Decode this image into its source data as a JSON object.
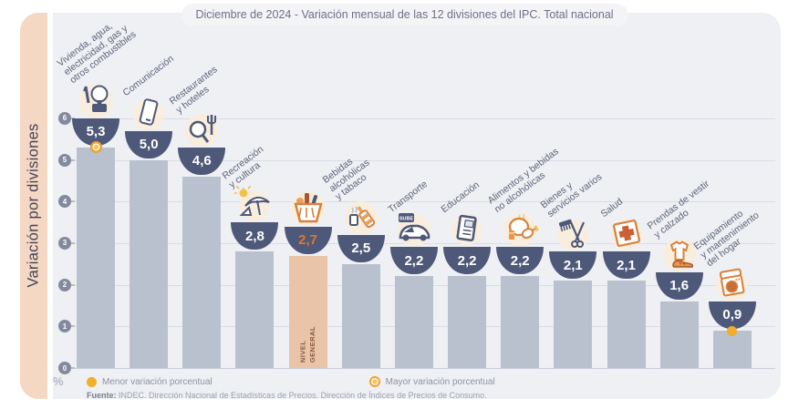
{
  "title": "Diciembre de 2024 - Variación mensual de las 12 divisiones del IPC. Total nacional",
  "sidebar": {
    "label": "Variación por divisiones"
  },
  "axis": {
    "unit_symbol": "%"
  },
  "source": {
    "prefix": "Fuente:",
    "text": " INDEC. Dirección Nacional de Estadísticas de Precios. Dirección de Índices de Precios de Consumo."
  },
  "chart_data": {
    "type": "bar",
    "title": "Diciembre de 2024 - Variación mensual de las 12 divisiones del IPC. Total nacional",
    "xlabel": "",
    "ylabel": "Variación por divisiones",
    "unit": "%",
    "ylim": [
      0,
      6
    ],
    "yticks": [
      0,
      1,
      2,
      3,
      4,
      5,
      6
    ],
    "grid": true,
    "legend_position": "bottom",
    "legend": [
      {
        "label": "Menor variación porcentual",
        "marker": "solid-yellow-dot"
      },
      {
        "label": "Mayor variación porcentual",
        "marker": "ringed-orange-dot"
      }
    ],
    "colors": {
      "bar": "#b8c1cd",
      "highlight_bar": "#eac4a9",
      "bowl": "#4e5878",
      "value_text": "#ffffff",
      "highlight_value_text": "#e0762f",
      "menor_dot": "#f0ae2a",
      "mayor_dot": "#ee9f35",
      "sidebar_bg": "#f5d8c3",
      "plot_bg": "#eef0f4"
    },
    "bars": [
      {
        "category": "Vivienda, agua, electricidad, gas y otros combustibles",
        "label_lines": [
          "Vivienda, agua,",
          "electricidad, gas y",
          "otros combustibles"
        ],
        "value": 5.3,
        "display": "5,3",
        "icon": "housing-utilities-icon",
        "marker": "mayor",
        "highlight": false
      },
      {
        "category": "Comunicación",
        "label_lines": [
          "Comunicación"
        ],
        "value": 5.0,
        "display": "5,0",
        "icon": "smartphone-icon",
        "marker": null,
        "highlight": false
      },
      {
        "category": "Restaurantes y hoteles",
        "label_lines": [
          "Restaurantes",
          "y hoteles"
        ],
        "value": 4.6,
        "display": "4,6",
        "icon": "restaurant-hotel-icon",
        "marker": null,
        "highlight": false
      },
      {
        "category": "Recreación y cultura",
        "label_lines": [
          "Recreación",
          "y cultura"
        ],
        "value": 2.8,
        "display": "2,8",
        "icon": "beach-umbrella-icon",
        "marker": null,
        "highlight": false
      },
      {
        "category": "Nivel general",
        "label_lines": [],
        "bar_label_lines": [
          "NIVEL",
          "GENERAL"
        ],
        "value": 2.7,
        "display": "2,7",
        "icon": "shopping-basket-icon",
        "marker": null,
        "highlight": true
      },
      {
        "category": "Bebidas alcohólicas y tabaco",
        "label_lines": [
          "Bebidas",
          "alcohólicas",
          "y tabaco"
        ],
        "value": 2.5,
        "display": "2,5",
        "icon": "alcohol-tobacco-icon",
        "marker": null,
        "highlight": false
      },
      {
        "category": "Transporte",
        "label_lines": [
          "Transporte"
        ],
        "value": 2.2,
        "display": "2,2",
        "icon": "car-transport-icon",
        "marker": null,
        "highlight": false
      },
      {
        "category": "Educación",
        "label_lines": [
          "Educación"
        ],
        "value": 2.2,
        "display": "2,2",
        "icon": "education-book-icon",
        "marker": null,
        "highlight": false
      },
      {
        "category": "Alimentos y bebidas no alcohólicas",
        "label_lines": [
          "Alimentos y bebidas",
          "no alcohólicas"
        ],
        "value": 2.2,
        "display": "2,2",
        "icon": "food-chicken-icon",
        "marker": null,
        "highlight": false
      },
      {
        "category": "Bienes y servicios varios",
        "label_lines": [
          "Bienes y",
          "servicios varios"
        ],
        "value": 2.1,
        "display": "2,1",
        "icon": "scissors-comb-icon",
        "marker": null,
        "highlight": false
      },
      {
        "category": "Salud",
        "label_lines": [
          "Salud"
        ],
        "value": 2.1,
        "display": "2,1",
        "icon": "health-cross-icon",
        "marker": null,
        "highlight": false
      },
      {
        "category": "Prendas de vestir y calzado",
        "label_lines": [
          "Prendas de vestir",
          "y calzado"
        ],
        "value": 1.6,
        "display": "1,6",
        "icon": "clothing-shoe-icon",
        "marker": null,
        "highlight": false
      },
      {
        "category": "Equipamiento y mantenimiento del hogar",
        "label_lines": [
          "Equipamiento",
          "y mantenimiento",
          "del hogar"
        ],
        "value": 0.9,
        "display": "0,9",
        "icon": "washing-machine-icon",
        "marker": "menor",
        "highlight": false
      }
    ]
  }
}
